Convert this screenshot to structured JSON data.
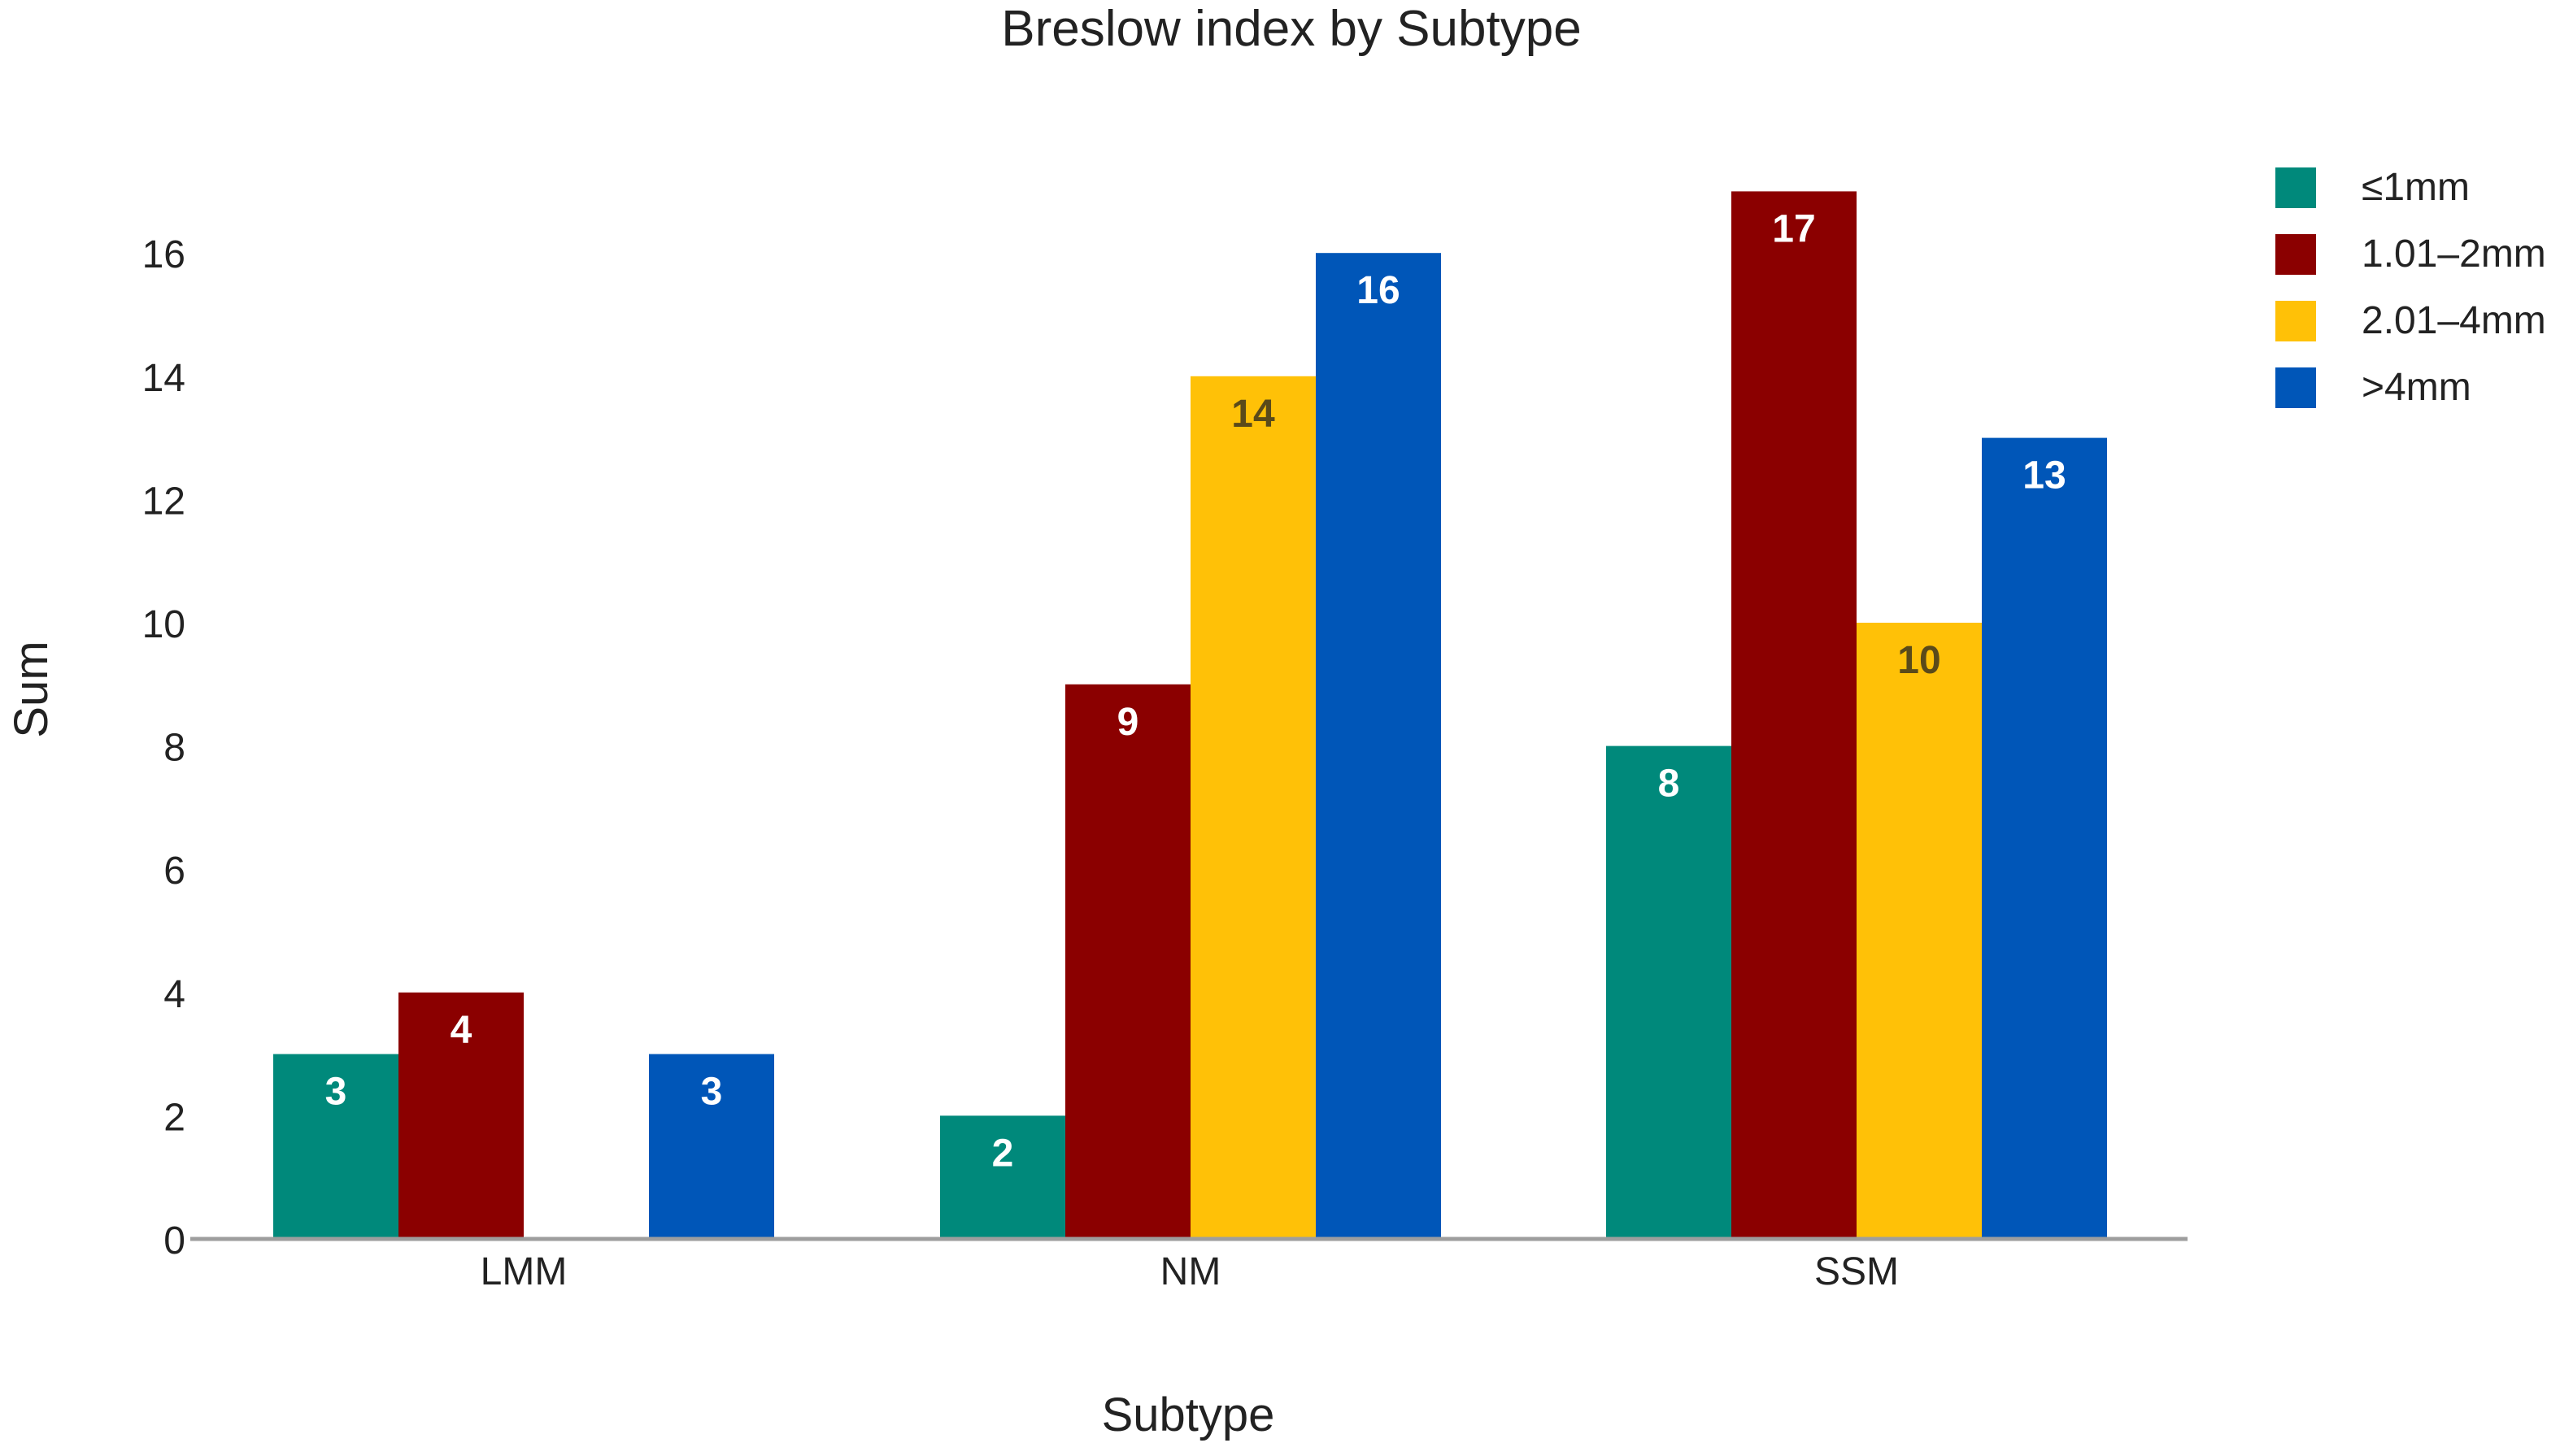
{
  "chart_data": {
    "type": "bar",
    "title": "Breslow index by Subtype",
    "xlabel": "Subtype",
    "ylabel": "Sum",
    "categories": [
      "LMM",
      "NM",
      "SSM"
    ],
    "series": [
      {
        "name": "≤1mm",
        "color": "#00897B",
        "values": [
          3,
          2,
          8
        ],
        "label_color": "#ffffff"
      },
      {
        "name": "1.01–2mm",
        "color": "#8B0000",
        "values": [
          4,
          9,
          17
        ],
        "label_color": "#ffffff"
      },
      {
        "name": "2.01–4mm",
        "color": "#FFC107",
        "values": [
          null,
          14,
          10
        ],
        "label_color": "#5a4a1a"
      },
      {
        "name": ">4mm",
        "color": "#0056B8",
        "values": [
          3,
          16,
          13
        ],
        "label_color": "#ffffff"
      }
    ],
    "ylim": [
      0,
      17
    ],
    "yticks": [
      0,
      2,
      4,
      6,
      8,
      10,
      12,
      14,
      16
    ],
    "grid": false,
    "legend": "top-right",
    "data_labels": true
  }
}
